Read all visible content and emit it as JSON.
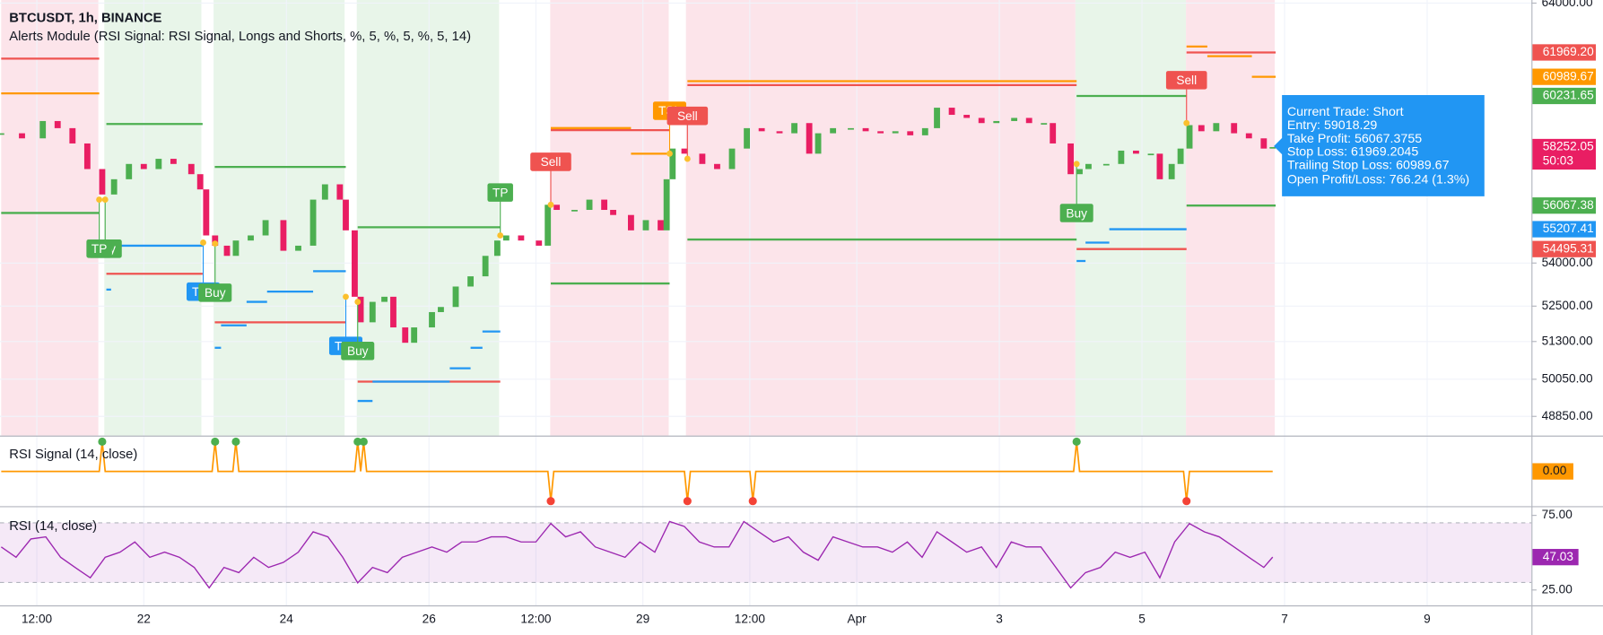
{
  "header": {
    "symbol": "BTCUSDT, 1h, BINANCE",
    "study": "Alerts Module (RSI Signal: RSI Signal, Longs and Shorts, %, 5, %, 5, %, 5, 14)"
  },
  "trade_box": {
    "lines": [
      "Current Trade: Short",
      "Entry: 59018.29",
      "Take Profit: 56067.3755",
      "Stop Loss: 61969.2045",
      "Trailing Stop Loss: 60989.67",
      "Open Profit/Loss: 766.24 (1.3%)"
    ]
  },
  "chart_data": [
    {
      "type": "candlestick",
      "color_up": "#4caf50",
      "color_down": "#e91e63",
      "log": true,
      "grid": true,
      "xlim": [
        -0.4,
        515.1
      ],
      "xticks": [
        {
          "value": 12,
          "label": "12:00"
        },
        {
          "value": 48,
          "label": "22"
        },
        {
          "value": 96,
          "label": "24"
        },
        {
          "value": 144,
          "label": "26"
        },
        {
          "value": 180,
          "label": "12:00"
        },
        {
          "value": 216,
          "label": "29"
        },
        {
          "value": 252,
          "label": "12:00"
        },
        {
          "value": 288,
          "label": "Apr"
        },
        {
          "value": 336,
          "label": "3"
        },
        {
          "value": 384,
          "label": "5"
        },
        {
          "value": 432,
          "label": "7"
        },
        {
          "value": 480,
          "label": "9"
        }
      ],
      "ylim": [
        48240,
        64130
      ],
      "yticks": [
        {
          "value": 64000,
          "label": "64000.00"
        },
        {
          "value": 54000,
          "label": "54000.00"
        },
        {
          "value": 52500,
          "label": "52500.00"
        },
        {
          "value": 51300,
          "label": "51300.00"
        },
        {
          "value": 50050,
          "label": "50050.00"
        },
        {
          "value": 48850,
          "label": "48850.00"
        }
      ],
      "x": [
        0,
        7,
        14,
        19,
        24,
        29,
        34,
        38,
        43,
        48,
        53,
        58,
        64,
        67,
        69,
        72,
        76,
        79,
        84,
        89,
        95,
        100,
        105,
        109,
        114,
        116,
        119,
        121,
        125,
        129,
        132,
        136,
        139,
        145,
        148,
        153,
        158,
        163,
        167,
        170,
        175,
        181,
        184,
        187,
        193,
        198,
        203,
        206,
        212,
        217,
        222,
        224,
        226,
        230,
        236,
        241,
        246,
        251,
        256,
        262,
        267,
        272,
        275,
        280,
        286,
        291,
        296,
        301,
        306,
        311,
        315,
        320,
        325,
        330,
        335,
        341,
        346,
        351,
        354,
        360,
        363,
        366,
        372,
        377,
        382,
        387,
        390,
        394,
        397,
        400,
        404,
        409,
        415,
        420,
        425,
        428
      ],
      "close": [
        58780,
        58585,
        59252,
        58977,
        58390,
        57421,
        56474,
        57040,
        57613,
        57421,
        57807,
        57613,
        57229,
        56662,
        54983,
        54616,
        54254,
        54800,
        54983,
        55536,
        54435,
        54616,
        56285,
        56851,
        56285,
        55166,
        52823,
        51948,
        52647,
        52823,
        51775,
        51258,
        51775,
        52296,
        52471,
        53177,
        53533,
        54254,
        54800,
        54983,
        54800,
        54616,
        56096,
        55909,
        55909,
        56285,
        55909,
        55723,
        55166,
        55536,
        55166,
        57040,
        58195,
        58001,
        57613,
        57421,
        58195,
        58977,
        58858,
        58780,
        59173,
        58001,
        58780,
        58977,
        58977,
        58858,
        58780,
        58858,
        58702,
        58977,
        59771,
        59493,
        59373,
        59173,
        59252,
        59373,
        59173,
        59173,
        58390,
        57229,
        57421,
        57613,
        57613,
        58117,
        58001,
        58001,
        57040,
        57613,
        58195,
        59094,
        58858,
        59173,
        58780,
        58585,
        58195,
        58252.05
      ],
      "zones": [
        {
          "start": 0,
          "end": 32.7,
          "color": "#fce4ea"
        },
        {
          "start": 34.7,
          "end": 67.4,
          "color": "#e8f5e9"
        },
        {
          "start": 71.5,
          "end": 115.6,
          "color": "#e8f5e9"
        },
        {
          "start": 119.7,
          "end": 167.6,
          "color": "#e8f5e9"
        },
        {
          "start": 184.8,
          "end": 224.7,
          "color": "#fce4ea"
        },
        {
          "start": 230.5,
          "end": 361.6,
          "color": "#fce4ea"
        },
        {
          "start": 361.6,
          "end": 398.8,
          "color": "#e8f5e9"
        },
        {
          "start": 398.8,
          "end": 428.7,
          "color": "#fce4ea"
        }
      ],
      "levels": [
        {
          "start": 0,
          "end": 33,
          "value": 61718,
          "color": "#ef5350"
        },
        {
          "start": 35.4,
          "end": 67.8,
          "value": 53623,
          "color": "#ef5350"
        },
        {
          "start": 71.9,
          "end": 116,
          "value": 51948,
          "color": "#ef5350"
        },
        {
          "start": 120,
          "end": 168,
          "value": 49973,
          "color": "#ef5350"
        },
        {
          "start": 185,
          "end": 225,
          "value": 58898,
          "color": "#ef5350"
        },
        {
          "start": 231,
          "end": 362,
          "value": 60659,
          "color": "#ef5350"
        },
        {
          "start": 362,
          "end": 399,
          "value": 54495.31,
          "color": "#ef5350"
        },
        {
          "start": 399,
          "end": 429,
          "value": 61969.2,
          "color": "#ef5350"
        },
        {
          "start": 0,
          "end": 33,
          "value": 55797,
          "color": "#4caf50"
        },
        {
          "start": 35.4,
          "end": 67.8,
          "value": 59137,
          "color": "#4caf50"
        },
        {
          "start": 71.9,
          "end": 116,
          "value": 57500,
          "color": "#4caf50"
        },
        {
          "start": 120,
          "end": 168,
          "value": 55278,
          "color": "#4caf50"
        },
        {
          "start": 185,
          "end": 225,
          "value": 53283,
          "color": "#4caf50"
        },
        {
          "start": 231,
          "end": 362,
          "value": 54836,
          "color": "#4caf50"
        },
        {
          "start": 362,
          "end": 399,
          "value": 60231.65,
          "color": "#4caf50"
        },
        {
          "start": 399,
          "end": 429,
          "value": 56067.38,
          "color": "#4caf50"
        },
        {
          "start": 0,
          "end": 33,
          "value": 60331,
          "color": "#ff9800"
        },
        {
          "start": 185,
          "end": 212,
          "value": 58980,
          "color": "#ff9800"
        },
        {
          "start": 212,
          "end": 225,
          "value": 58001,
          "color": "#ff9800"
        },
        {
          "start": 231,
          "end": 362,
          "value": 60815,
          "color": "#ff9800"
        },
        {
          "start": 399,
          "end": 406,
          "value": 62210,
          "color": "#ff9800"
        },
        {
          "start": 406,
          "end": 421,
          "value": 61820,
          "color": "#ff9800"
        },
        {
          "start": 421,
          "end": 429,
          "value": 60989.67,
          "color": "#ff9800"
        },
        {
          "start": 35.4,
          "end": 37,
          "value": 53071,
          "color": "#2196f3"
        },
        {
          "start": 37,
          "end": 67.8,
          "value": 54616,
          "color": "#2196f3"
        },
        {
          "start": 71.9,
          "end": 74,
          "value": 51090,
          "color": "#2196f3"
        },
        {
          "start": 74,
          "end": 82.6,
          "value": 51846,
          "color": "#2196f3"
        },
        {
          "start": 82.6,
          "end": 89.5,
          "value": 52647,
          "color": "#2196f3"
        },
        {
          "start": 89.5,
          "end": 105,
          "value": 53000,
          "color": "#2196f3"
        },
        {
          "start": 105,
          "end": 116,
          "value": 53712,
          "color": "#2196f3"
        },
        {
          "start": 120,
          "end": 125,
          "value": 49345,
          "color": "#2196f3"
        },
        {
          "start": 125,
          "end": 151,
          "value": 49973,
          "color": "#2196f3"
        },
        {
          "start": 151,
          "end": 158,
          "value": 50410,
          "color": "#2196f3"
        },
        {
          "start": 158,
          "end": 162,
          "value": 51090,
          "color": "#2196f3"
        },
        {
          "start": 162,
          "end": 168,
          "value": 51635,
          "color": "#2196f3"
        },
        {
          "start": 362,
          "end": 365,
          "value": 54072,
          "color": "#2196f3"
        },
        {
          "start": 365,
          "end": 373,
          "value": 54727,
          "color": "#2196f3"
        },
        {
          "start": 373,
          "end": 399,
          "value": 55207.41,
          "color": "#2196f3"
        }
      ],
      "signals": [
        {
          "label": "Buy",
          "x": 35,
          "value": 56285,
          "side": "below",
          "color": "#4caf50"
        },
        {
          "label": "TP",
          "x": 33,
          "value": 56285,
          "side": "below",
          "color": "#4caf50"
        },
        {
          "label": "TSL",
          "x": 68,
          "value": 54727,
          "side": "below",
          "color": "#2196f3"
        },
        {
          "label": "Buy",
          "x": 72,
          "value": 54690,
          "side": "below",
          "color": "#4caf50"
        },
        {
          "label": "TSL",
          "x": 116,
          "value": 52823,
          "side": "below",
          "color": "#2196f3"
        },
        {
          "label": "Buy",
          "x": 120,
          "value": 52647,
          "side": "below",
          "color": "#4caf50"
        },
        {
          "label": "TP",
          "x": 168,
          "value": 54983,
          "side": "above",
          "color": "#4caf50"
        },
        {
          "label": "Sell",
          "x": 185,
          "value": 56096,
          "side": "above",
          "color": "#ef5350"
        },
        {
          "label": "TSL",
          "x": 225,
          "value": 58001,
          "side": "above",
          "color": "#ff9800"
        },
        {
          "label": "Sell",
          "x": 231,
          "value": 57807,
          "side": "above",
          "color": "#ef5350"
        },
        {
          "label": "Buy",
          "x": 362,
          "value": 57613,
          "side": "below",
          "color": "#4caf50"
        },
        {
          "label": "Sell",
          "x": 399,
          "value": 59173,
          "side": "above",
          "color": "#ef5350"
        }
      ],
      "price_tags": [
        {
          "value": 61969.2,
          "label": "61969.20",
          "color": "#ef5350"
        },
        {
          "value": 60989.67,
          "label": "60989.67",
          "color": "#ff9800"
        },
        {
          "value": 60231.65,
          "label": "60231.65",
          "color": "#4caf50"
        },
        {
          "value": 58252.05,
          "label": "58252.05",
          "countdown": "50:03",
          "color": "#e91e63"
        },
        {
          "value": 56067.38,
          "label": "56067.38",
          "color": "#4caf50"
        },
        {
          "value": 55207.41,
          "label": "55207.41",
          "color": "#2196f3"
        },
        {
          "value": 54495.31,
          "label": "54495.31",
          "color": "#ef5350"
        }
      ]
    },
    {
      "type": "line",
      "title": "RSI Signal (14, close)",
      "color": "#ff9800",
      "up_color": "#4caf50",
      "down_color": "#f44336",
      "ylim": [
        -1.17,
        1.17
      ],
      "x": [
        0,
        33,
        34,
        35,
        71,
        72,
        73,
        78,
        79,
        80,
        119,
        120,
        121,
        122,
        123,
        184,
        185,
        186,
        230,
        231,
        232,
        252,
        253,
        254,
        361,
        362,
        363,
        398,
        399,
        400,
        428
      ],
      "values": [
        0,
        0,
        1,
        0,
        0,
        1,
        0,
        0,
        1,
        0,
        0,
        1,
        0,
        1,
        0,
        0,
        -1,
        0,
        0,
        -1,
        0,
        0,
        -1,
        0,
        0,
        1,
        0,
        0,
        -1,
        0,
        0
      ],
      "last_label": "0.00"
    },
    {
      "type": "line",
      "title": "RSI (14, close)",
      "color": "#9c27b0",
      "ylim": [
        14.7,
        79.8
      ],
      "yticks": [
        {
          "value": 75,
          "label": "75.00"
        },
        {
          "value": 25,
          "label": "25.00"
        }
      ],
      "band": [
        30,
        70
      ],
      "x": [
        0,
        5,
        10,
        15,
        20,
        25,
        30,
        35,
        40,
        45,
        50,
        55,
        60,
        65,
        70,
        75,
        80,
        85,
        90,
        95,
        100,
        105,
        110,
        115,
        120,
        125,
        130,
        135,
        140,
        145,
        150,
        155,
        160,
        165,
        170,
        175,
        180,
        185,
        190,
        195,
        200,
        205,
        210,
        215,
        220,
        225,
        230,
        235,
        240,
        245,
        250,
        255,
        260,
        265,
        270,
        275,
        280,
        285,
        290,
        295,
        300,
        305,
        310,
        315,
        320,
        325,
        330,
        335,
        340,
        345,
        350,
        355,
        360,
        365,
        370,
        375,
        380,
        385,
        390,
        395,
        400,
        405,
        410,
        415,
        420,
        425,
        428
      ],
      "values": [
        53.8,
        46.9,
        59.2,
        60.6,
        46.9,
        39.9,
        33.2,
        46.9,
        50.3,
        57.2,
        46.9,
        50.3,
        46.9,
        40.1,
        26.4,
        40.1,
        36.6,
        46.9,
        40.1,
        43.5,
        50.3,
        64.0,
        60.6,
        46.9,
        29.8,
        40.1,
        36.6,
        46.9,
        50.3,
        53.8,
        50.3,
        57.2,
        57.2,
        60.6,
        60.6,
        57.2,
        57.2,
        69.5,
        60.6,
        64.0,
        53.8,
        50.3,
        46.9,
        57.2,
        50.3,
        70.9,
        67.5,
        57.2,
        53.8,
        53.8,
        70.9,
        64.0,
        57.2,
        60.6,
        50.3,
        44.9,
        60.6,
        57.2,
        53.8,
        53.8,
        50.3,
        57.2,
        46.9,
        64.0,
        57.2,
        50.3,
        53.8,
        40.1,
        57.2,
        53.8,
        53.8,
        40.1,
        26.4,
        36.6,
        40.1,
        50.3,
        46.9,
        50.3,
        33.2,
        57.2,
        69.5,
        64.0,
        60.6,
        53.8,
        46.9,
        40.1,
        47.03
      ],
      "last_label": "47.03"
    }
  ]
}
